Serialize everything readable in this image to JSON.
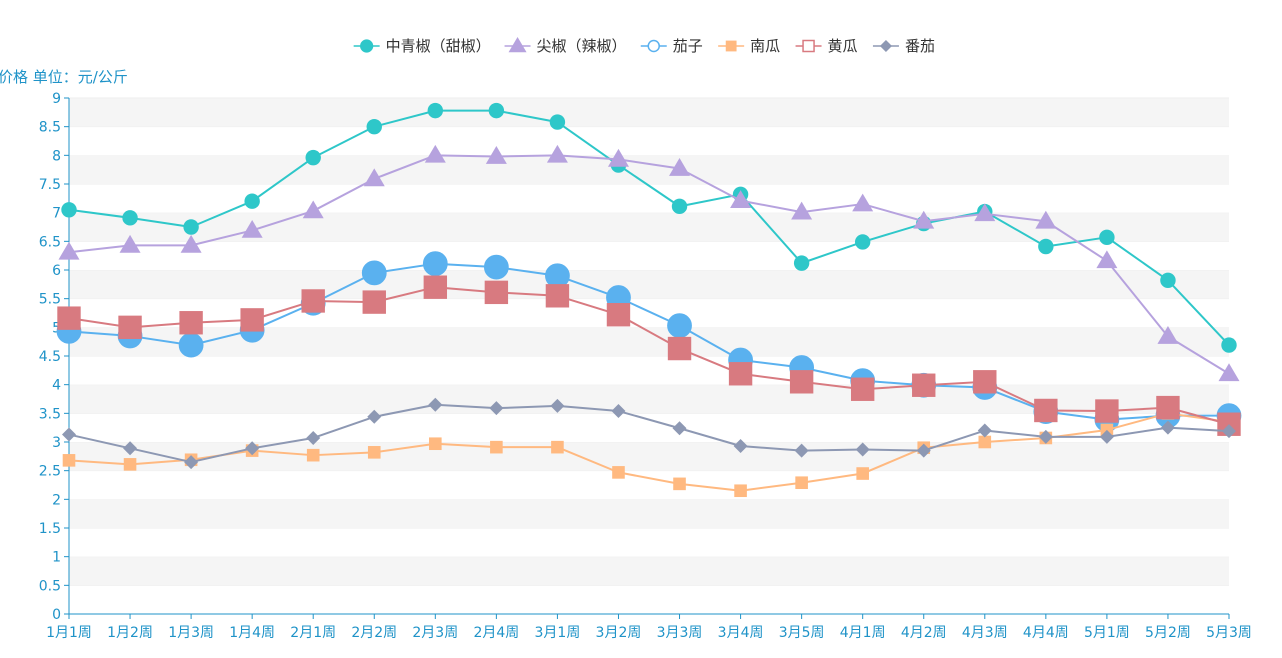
{
  "chart_data": {
    "type": "line",
    "ylabel": "价格 单位：元/公斤",
    "ylim": [
      0,
      9
    ],
    "yticks": [
      "0",
      "0.5",
      "1",
      "1.5",
      "2",
      "2.5",
      "3",
      "3.5",
      "4",
      "4.5",
      "5",
      "5.5",
      "6",
      "6.5",
      "7",
      "7.5",
      "8",
      "8.5",
      "9"
    ],
    "categories": [
      "1月1周",
      "1月2周",
      "1月3周",
      "1月4周",
      "2月1周",
      "2月2周",
      "2月3周",
      "2月4周",
      "3月1周",
      "3月2周",
      "3月3周",
      "3月4周",
      "3月5周",
      "4月1周",
      "4月2周",
      "4月3周",
      "4月4周",
      "5月1周",
      "5月2周",
      "5月3周"
    ],
    "grid": "horizontal bands",
    "legend_position": "top-center",
    "series": [
      {
        "name": "中青椒（甜椒）",
        "color": "#2ec7c9",
        "marker": "circle",
        "values": [
          7.05,
          6.91,
          6.75,
          7.2,
          7.96,
          8.5,
          8.78,
          8.78,
          8.58,
          7.83,
          7.11,
          7.32,
          6.12,
          6.49,
          6.81,
          7.02,
          6.41,
          6.57,
          5.82,
          4.69
        ]
      },
      {
        "name": "尖椒（辣椒）",
        "color": "#b6a2de",
        "marker": "triangle",
        "values": [
          6.31,
          6.43,
          6.43,
          6.69,
          7.03,
          7.59,
          8.0,
          7.98,
          8.0,
          7.93,
          7.77,
          7.21,
          7.01,
          7.15,
          6.85,
          6.98,
          6.85,
          6.16,
          4.84,
          4.19
        ]
      },
      {
        "name": "茄子",
        "color": "#5ab1ef",
        "marker": "emptyCircle",
        "values": [
          4.93,
          4.85,
          4.69,
          4.95,
          5.42,
          5.95,
          6.11,
          6.05,
          5.9,
          5.52,
          5.03,
          4.43,
          4.3,
          4.07,
          3.99,
          3.95,
          3.53,
          3.39,
          3.46,
          3.46
        ]
      },
      {
        "name": "南瓜",
        "color": "#ffb980",
        "marker": "rect",
        "values": [
          2.68,
          2.61,
          2.69,
          2.85,
          2.77,
          2.82,
          2.97,
          2.91,
          2.91,
          2.47,
          2.27,
          2.15,
          2.29,
          2.45,
          2.9,
          3.0,
          3.07,
          3.21,
          3.5,
          3.35
        ]
      },
      {
        "name": "黄瓜",
        "color": "#d87a80",
        "marker": "emptyRect",
        "values": [
          5.16,
          5.0,
          5.08,
          5.13,
          5.46,
          5.44,
          5.7,
          5.61,
          5.55,
          5.22,
          4.63,
          4.19,
          4.05,
          3.92,
          3.99,
          4.05,
          3.55,
          3.54,
          3.6,
          3.31
        ]
      },
      {
        "name": "番茄",
        "color": "#8d98b3",
        "marker": "diamond",
        "values": [
          3.13,
          2.89,
          2.65,
          2.89,
          3.07,
          3.44,
          3.65,
          3.59,
          3.63,
          3.54,
          3.24,
          2.93,
          2.85,
          2.87,
          2.85,
          3.2,
          3.09,
          3.09,
          3.25,
          3.19
        ]
      }
    ]
  }
}
